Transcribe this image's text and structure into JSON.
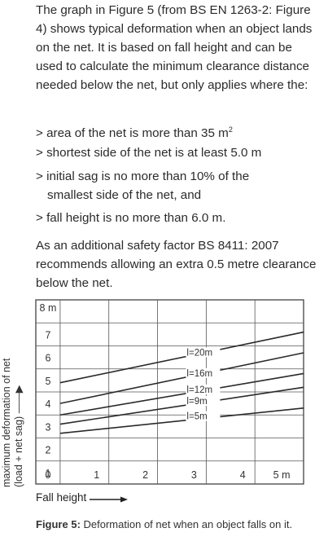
{
  "text": {
    "intro": "The graph in Figure 5 (from BS EN 1263-2: Figure 4) shows typical deformation when an object lands on the net. It is based on fall height and can be used to calculate the minimum clearance distance needed below the net, but only applies where the:",
    "bullets": [
      "> area of the net is more than 35 m",
      "> shortest side of the net is at least 5.0 m",
      "> initial sag is no more than 10% of the",
      "smallest side of the net, and",
      "> fall height is no more than 6.0 m."
    ],
    "bullet1_sup": "2",
    "additional": "As an additional safety factor BS 8411: 2007 recommends allowing an extra 0.5 metre clearance below the net."
  },
  "chart_labels": {
    "y_axis_line1": "maximum deformation of net",
    "y_axis_line2": "(load + net sag)",
    "x_axis": "Fall height"
  },
  "caption": {
    "prefix": "Figure 5:",
    "text": " Deformation of net when an object falls on it."
  },
  "chart_data": {
    "type": "line",
    "xlabel": "Fall height",
    "ylabel": "maximum deformation of net (load + net sag)",
    "x_ticks": [
      "0",
      "1",
      "2",
      "3",
      "4",
      "5 m"
    ],
    "y_ticks": [
      "8 m",
      "7",
      "6",
      "5",
      "4",
      "3",
      "2",
      "1",
      "0"
    ],
    "xlim": [
      0,
      5.5
    ],
    "ylim": [
      0,
      8
    ],
    "grid": true,
    "series": [
      {
        "name": "l=20m",
        "x": [
          0.5,
          5.5
        ],
        "y": [
          4.4,
          6.6
        ]
      },
      {
        "name": "l=16m",
        "x": [
          0.5,
          5.5
        ],
        "y": [
          3.5,
          5.7
        ]
      },
      {
        "name": "l=12m",
        "x": [
          0.5,
          5.5
        ],
        "y": [
          3.0,
          4.8
        ]
      },
      {
        "name": "l=9m",
        "x": [
          0.5,
          5.5
        ],
        "y": [
          2.6,
          4.2
        ]
      },
      {
        "name": "l=5m",
        "x": [
          0.5,
          5.5
        ],
        "y": [
          2.2,
          3.3
        ]
      }
    ]
  }
}
